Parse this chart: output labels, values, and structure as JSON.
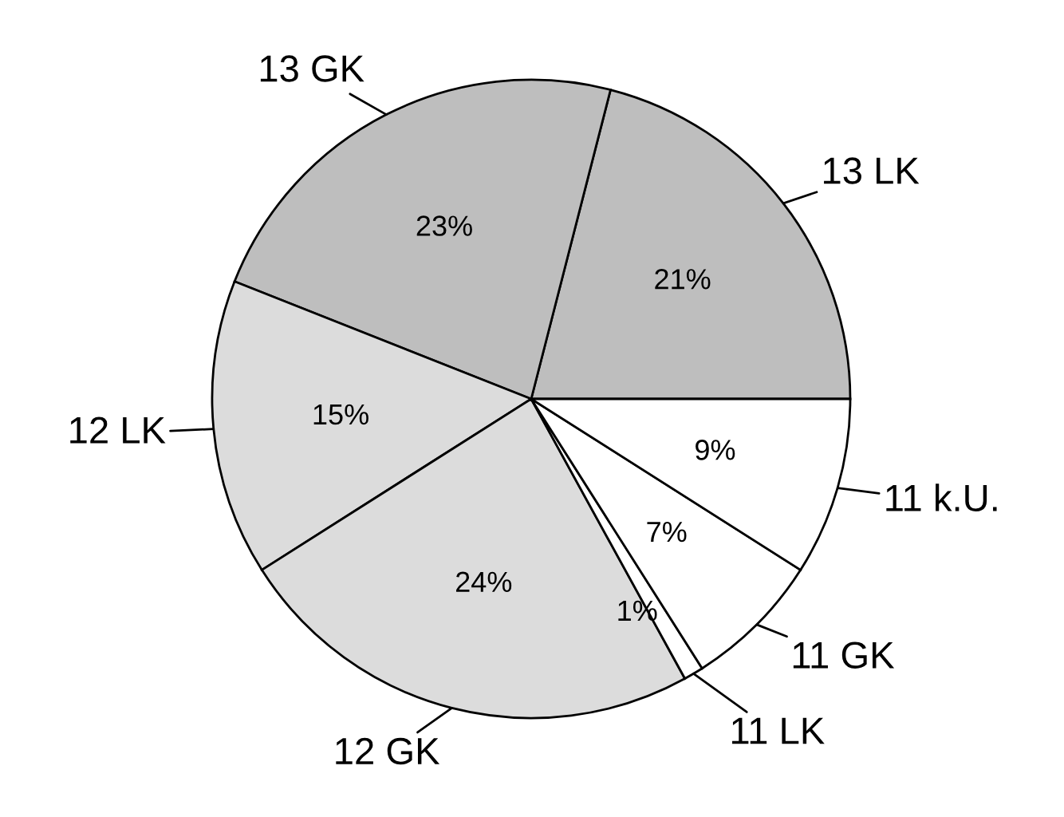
{
  "chart_data": {
    "type": "pie",
    "categories": [
      "13 LK",
      "13 GK",
      "12 LK",
      "12 GK",
      "11 LK",
      "11 GK",
      "11 k.U."
    ],
    "values": [
      21,
      23,
      15,
      24,
      1,
      7,
      9
    ],
    "colors": [
      "#bebebe",
      "#bebebe",
      "#dcdcdc",
      "#dcdcdc",
      "#ffffff",
      "#ffffff",
      "#ffffff"
    ],
    "value_labels": [
      "21%",
      "23%",
      "15%",
      "24%",
      "1%",
      "7%",
      "9%"
    ]
  }
}
